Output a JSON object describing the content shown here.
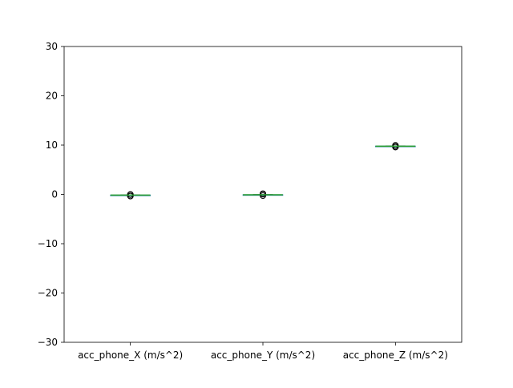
{
  "chart_data": {
    "type": "box",
    "title": "",
    "xlabel": "",
    "ylabel": "",
    "ylim": [
      -30,
      30
    ],
    "yticks": [
      -30,
      -20,
      -10,
      0,
      10,
      20,
      30
    ],
    "ytick_labels": [
      "−30",
      "−20",
      "−10",
      "0",
      "10",
      "20",
      "30"
    ],
    "grid": false,
    "legend": "none",
    "categories": [
      "acc_phone_X (m/s^2)",
      "acc_phone_Y (m/s^2)",
      "acc_phone_Z (m/s^2)"
    ],
    "boxes": [
      {
        "whisker_low": -0.2,
        "q1": -0.17,
        "median": -0.15,
        "q3": -0.13,
        "whisker_high": -0.1,
        "fliers": [
          -0.35,
          -0.3,
          -0.05,
          0.0
        ]
      },
      {
        "whisker_low": -0.12,
        "q1": -0.1,
        "median": -0.08,
        "q3": -0.06,
        "whisker_high": -0.04,
        "fliers": [
          -0.25,
          0.05,
          0.1,
          0.15
        ]
      },
      {
        "whisker_low": 9.7,
        "q1": 9.74,
        "median": 9.77,
        "q3": 9.8,
        "whisker_high": 9.84,
        "fliers": [
          9.6,
          9.65,
          9.9,
          9.95
        ]
      }
    ],
    "colors": {
      "box": "#1f77b4",
      "median": "#2ca02c",
      "whisker": "#000000",
      "flier": "#000000"
    }
  }
}
